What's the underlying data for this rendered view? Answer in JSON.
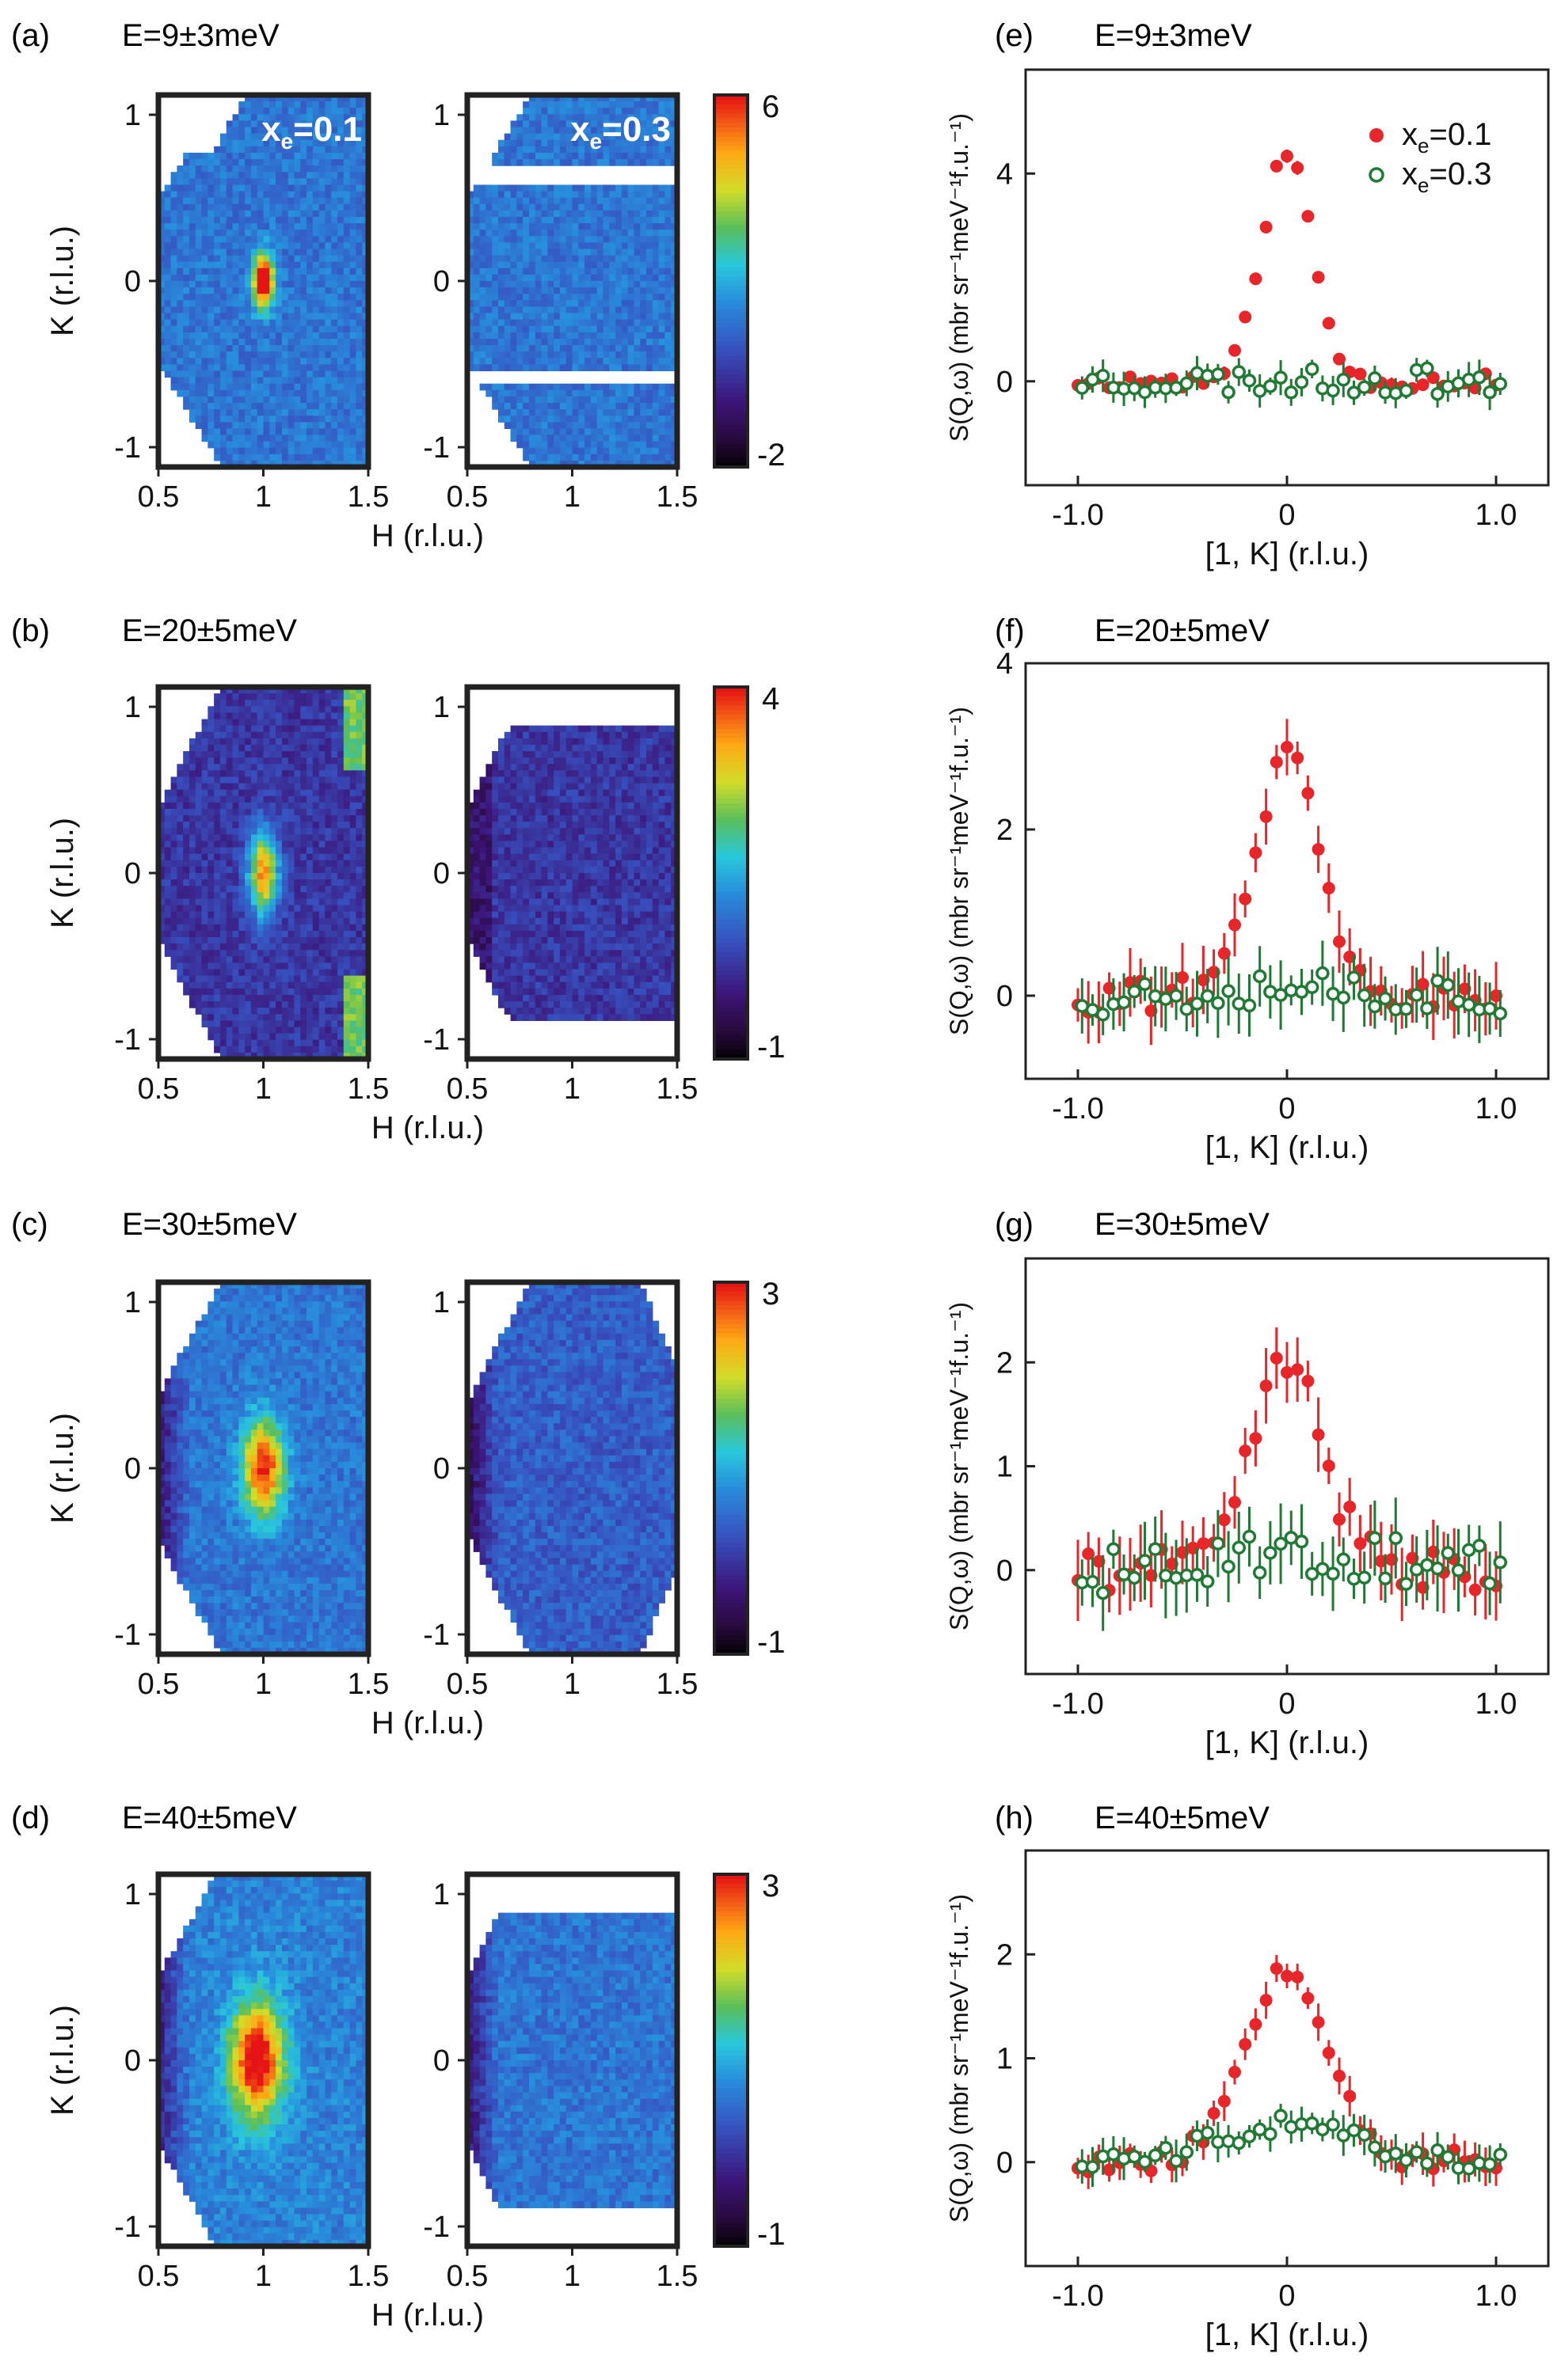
{
  "figure": {
    "colorbar_note": "jet colormap; white = no data",
    "colors": {
      "xe01": "#e8262a",
      "xe03": "#1f7a33",
      "axis": "#111111"
    }
  },
  "chart_data": [
    {
      "panel": "(a)",
      "type": "heatmap",
      "energy": "E=9±3meV",
      "maps": [
        {
          "label": "x_e=0.1",
          "label_text": "x",
          "label_sub": "e",
          "label_rest": "=0.1",
          "xlim": [
            0.5,
            1.5
          ],
          "ylim": [
            -1,
            1
          ],
          "peak": {
            "x": 1.0,
            "y": 0.0,
            "height": 6,
            "sigma_h": 0.035,
            "sigma_k": 0.1
          },
          "background": 1.2,
          "coverage": "hex-a",
          "gaps": []
        },
        {
          "label": "x_e=0.3",
          "label_text": "x",
          "label_sub": "e",
          "label_rest": "=0.3",
          "xlim": [
            0.5,
            1.5
          ],
          "ylim": [
            -1,
            1
          ],
          "peak": null,
          "background": 1.2,
          "coverage": "hex-a2",
          "gaps": [
            [
              0.53,
              0.61
            ],
            [
              -0.56,
              -0.48
            ]
          ]
        }
      ],
      "colorbar": {
        "min": -2,
        "max": 6,
        "min_label": "-2",
        "max_label": "6"
      },
      "xlabel": "H (r.l.u.)",
      "ylabel": "K (r.l.u.)",
      "xticks": [
        "0.5",
        "1",
        "1.5"
      ],
      "yticks": [
        "1",
        "0",
        "-1"
      ]
    },
    {
      "panel": "(b)",
      "type": "heatmap",
      "energy": "E=20±5meV",
      "maps": [
        {
          "label": "",
          "xlim": [
            0.5,
            1.5
          ],
          "ylim": [
            -1,
            1
          ],
          "peak": {
            "x": 1.0,
            "y": 0.0,
            "height": 3.2,
            "sigma_h": 0.05,
            "sigma_k": 0.16
          },
          "background": 0.3,
          "coverage": "hex-b",
          "gaps": []
        },
        {
          "label": "",
          "xlim": [
            0.5,
            1.5
          ],
          "ylim": [
            -1,
            1
          ],
          "peak": null,
          "background": 0.3,
          "coverage": "hex-b2",
          "gaps": []
        }
      ],
      "colorbar": {
        "min": -1,
        "max": 4,
        "min_label": "-1",
        "max_label": "4"
      },
      "xlabel": "H (r.l.u.)",
      "ylabel": "K (r.l.u.)",
      "xticks": [
        "0.5",
        "1",
        "1.5"
      ],
      "yticks": [
        "1",
        "0",
        "-1"
      ]
    },
    {
      "panel": "(c)",
      "type": "heatmap",
      "energy": "E=30±5meV",
      "maps": [
        {
          "label": "",
          "xlim": [
            0.5,
            1.5
          ],
          "ylim": [
            -1,
            1
          ],
          "peak": {
            "x": 1.0,
            "y": 0.0,
            "height": 2.4,
            "sigma_h": 0.07,
            "sigma_k": 0.18
          },
          "background": 0.6,
          "coverage": "hex-c",
          "gaps": []
        },
        {
          "label": "",
          "xlim": [
            0.5,
            1.5
          ],
          "ylim": [
            -1,
            1
          ],
          "peak": null,
          "background": 0.4,
          "coverage": "hex-c2",
          "gaps": []
        }
      ],
      "colorbar": {
        "min": -1,
        "max": 3,
        "min_label": "-1",
        "max_label": "3"
      },
      "xlabel": "H (r.l.u.)",
      "ylabel": "K (r.l.u.)",
      "xticks": [
        "0.5",
        "1",
        "1.5"
      ],
      "yticks": [
        "1",
        "0",
        "-1"
      ]
    },
    {
      "panel": "(d)",
      "type": "heatmap",
      "energy": "E=40±5meV",
      "maps": [
        {
          "label": "",
          "xlim": [
            0.5,
            1.5
          ],
          "ylim": [
            -1,
            1
          ],
          "peak": {
            "x": 0.97,
            "y": 0.0,
            "height": 2.6,
            "sigma_h": 0.09,
            "sigma_k": 0.22
          },
          "background": 0.7,
          "coverage": "hex-d",
          "gaps": []
        },
        {
          "label": "",
          "xlim": [
            0.5,
            1.5
          ],
          "ylim": [
            -1,
            1
          ],
          "peak": null,
          "background": 0.6,
          "coverage": "hex-d2",
          "gaps": [
            [
              0.8,
              1.05
            ],
            [
              -1.05,
              -0.8
            ]
          ]
        }
      ],
      "colorbar": {
        "min": -1,
        "max": 3,
        "min_label": "-1",
        "max_label": "3"
      },
      "xlabel": "H (r.l.u.)",
      "ylabel": "K (r.l.u.)",
      "xticks": [
        "0.5",
        "1",
        "1.5"
      ],
      "yticks": [
        "1",
        "0",
        "-1"
      ]
    },
    {
      "panel": "(e)",
      "type": "scatter",
      "energy": "E=9±3meV",
      "xlabel": "[1, K] (r.l.u.)",
      "ylabel": "S(Q,ω) (mbr sr⁻¹meV⁻¹f.u.⁻¹)",
      "xlim": [
        -1.25,
        1.25
      ],
      "ylim": [
        -2,
        6
      ],
      "yticks": [
        0,
        4
      ],
      "xticks": [
        "-1.0",
        "0",
        "1.0"
      ],
      "legend": {
        "position": "top-right",
        "entries": [
          {
            "marker": "filled",
            "text": "x",
            "sub": "e",
            "rest": "=0.1"
          },
          {
            "marker": "open",
            "text": "x",
            "sub": "e",
            "rest": "=0.3"
          }
        ]
      },
      "series": [
        {
          "name": "x_e=0.1",
          "marker": "filled",
          "amp": 4.4,
          "sigma": 0.12,
          "noise": 0.15,
          "err": 0.1,
          "seed": 11
        },
        {
          "name": "x_e=0.3",
          "marker": "open",
          "amp": 0.0,
          "sigma": 0.2,
          "noise": 0.25,
          "err": 0.25,
          "seed": 23
        }
      ]
    },
    {
      "panel": "(f)",
      "type": "scatter",
      "energy": "E=20±5meV",
      "xlabel": "[1, K] (r.l.u.)",
      "ylabel": "S(Q,ω) (mbr sr⁻¹meV⁻¹f.u.⁻¹)",
      "xlim": [
        -1.25,
        1.25
      ],
      "ylim": [
        -1,
        4
      ],
      "yticks": [
        0,
        2,
        4
      ],
      "xticks": [
        "-1.0",
        "0",
        "1.0"
      ],
      "legend": null,
      "series": [
        {
          "name": "x_e=0.1",
          "marker": "filled",
          "amp": 2.8,
          "sigma": 0.16,
          "noise": 0.22,
          "err": 0.3,
          "seed": 31
        },
        {
          "name": "x_e=0.3",
          "marker": "open",
          "amp": 0.15,
          "sigma": 0.3,
          "noise": 0.25,
          "err": 0.3,
          "seed": 37
        }
      ]
    },
    {
      "panel": "(g)",
      "type": "scatter",
      "energy": "E=30±5meV",
      "xlabel": "[1, K] (r.l.u.)",
      "ylabel": "S(Q,ω) (mbr sr⁻¹meV⁻¹f.u.⁻¹)",
      "xlim": [
        -1.25,
        1.25
      ],
      "ylim": [
        -1,
        3
      ],
      "yticks": [
        0,
        1,
        2
      ],
      "xticks": [
        "-1.0",
        "0",
        "1.0"
      ],
      "legend": null,
      "series": [
        {
          "name": "x_e=0.1",
          "marker": "filled",
          "amp": 2.0,
          "sigma": 0.17,
          "noise": 0.2,
          "err": 0.28,
          "seed": 41
        },
        {
          "name": "x_e=0.3",
          "marker": "open",
          "amp": 0.2,
          "sigma": 0.35,
          "noise": 0.25,
          "err": 0.3,
          "seed": 43
        }
      ]
    },
    {
      "panel": "(h)",
      "type": "scatter",
      "energy": "E=40±5meV",
      "xlabel": "[1, K] (r.l.u.)",
      "ylabel": "S(Q,ω) (mbr sr⁻¹meV⁻¹f.u.⁻¹)",
      "xlim": [
        -1.25,
        1.25
      ],
      "ylim": [
        -1,
        3
      ],
      "yticks": [
        0,
        1,
        2
      ],
      "xticks": [
        "-1.0",
        "0",
        "1.0"
      ],
      "legend": null,
      "series": [
        {
          "name": "x_e=0.1",
          "marker": "filled",
          "amp": 1.9,
          "sigma": 0.2,
          "noise": 0.12,
          "err": 0.15,
          "seed": 53
        },
        {
          "name": "x_e=0.3",
          "marker": "open",
          "amp": 0.35,
          "sigma": 0.35,
          "noise": 0.1,
          "err": 0.15,
          "seed": 59
        }
      ]
    }
  ]
}
